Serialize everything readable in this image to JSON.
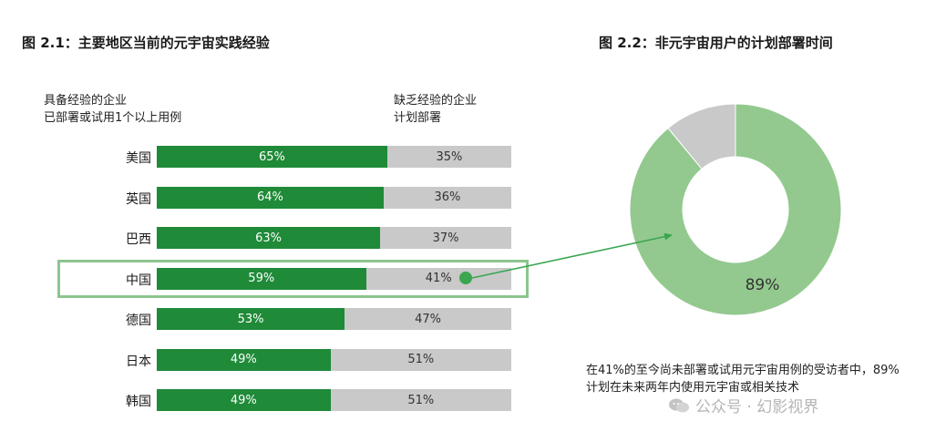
{
  "chart_data": [
    {
      "type": "bar",
      "orientation": "horizontal",
      "stacked": true,
      "title": "图 2.1：主要地区当前的元宇宙实践经验",
      "categories": [
        "美国",
        "英国",
        "巴西",
        "中国",
        "德国",
        "日本",
        "韩国"
      ],
      "series": [
        {
          "name": "具备经验的企业\n已部署或试用1个以上用例",
          "values": [
            65,
            64,
            63,
            59,
            53,
            49,
            49
          ],
          "color": "#1f8a38"
        },
        {
          "name": "缺乏经验的企业\n计划部署",
          "values": [
            35,
            36,
            37,
            41,
            47,
            51,
            51
          ],
          "color": "#c9c9c9"
        }
      ],
      "value_suffix": "%",
      "highlight_category": "中国"
    },
    {
      "type": "pie",
      "donut": true,
      "title": "图 2.2：非元宇宙用户的计划部署时间",
      "slices": [
        {
          "value": 89,
          "label": "89%",
          "color": "#93c98f"
        },
        {
          "value": 11,
          "label": "",
          "color": "#c9c9c9"
        }
      ]
    }
  ],
  "legend": {
    "left_line1": "具备经验的企业",
    "left_line2": "已部署或试用1个以上用例",
    "right_line1": "缺乏经验的企业",
    "right_line2": "计划部署"
  },
  "note": "在41%的至今尚未部署或试用元宇宙用例的受访者中，89%计划在未来两年内使用元宇宙或相关技术",
  "watermark": "公众号 · 幻影视界",
  "colors": {
    "green": "#1f8a38",
    "gray": "#c9c9c9",
    "light_green": "#93c98f",
    "highlight": "#8cc58f",
    "arrow": "#3aa650"
  }
}
